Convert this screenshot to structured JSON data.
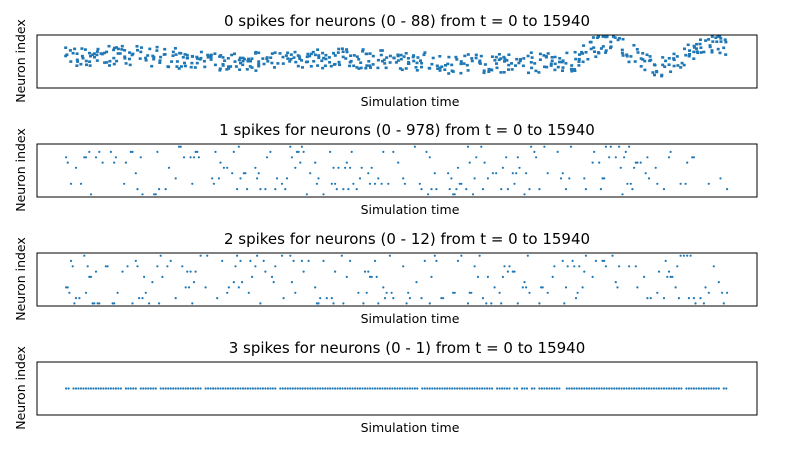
{
  "figure": {
    "description": "Spike raster plots of simulated neuron populations"
  },
  "chart_data": [
    {
      "type": "scatter",
      "title": "0 spikes for neurons (0 - 88) from t = 0 to 15940",
      "xlabel": "Simulation time",
      "ylabel": "Neuron index",
      "xlim": [
        -700,
        16640
      ],
      "ylim": [
        0,
        88
      ],
      "grid": false,
      "ticks_visible": false,
      "color": "#1f77b4",
      "marker": "square",
      "pattern": "dense drifting activity band around the upper-middle neuron range with late oscillation"
    },
    {
      "type": "scatter",
      "title": "1 spikes for neurons (0 - 978) from t = 0 to 15940",
      "xlabel": "Simulation time",
      "ylabel": "Neuron index",
      "xlim": [
        -700,
        16640
      ],
      "ylim": [
        0,
        978
      ],
      "grid": false,
      "ticks_visible": false,
      "color": "#1f77b4",
      "marker": "dot",
      "pattern": "sparse scattered spikes across all neurons"
    },
    {
      "type": "scatter",
      "title": "2 spikes for neurons (0 - 12) from t = 0 to 15940",
      "xlabel": "Simulation time",
      "ylabel": "Neuron index",
      "xlim": [
        -700,
        16640
      ],
      "ylim": [
        0,
        12
      ],
      "grid": false,
      "ticks_visible": false,
      "color": "#1f77b4",
      "marker": "dot",
      "pattern": "sparse scattered spikes across all neurons"
    },
    {
      "type": "scatter",
      "title": "3 spikes for neurons (0 - 1) from t = 0 to 15940",
      "xlabel": "Simulation time",
      "ylabel": "Neuron index",
      "xlim": [
        -700,
        16640
      ],
      "ylim": [
        0,
        1
      ],
      "grid": false,
      "ticks_visible": false,
      "color": "#1f77b4",
      "marker": "dot",
      "pattern": "single neuron firing continuously at constant index",
      "constant_index": 0.5
    }
  ]
}
